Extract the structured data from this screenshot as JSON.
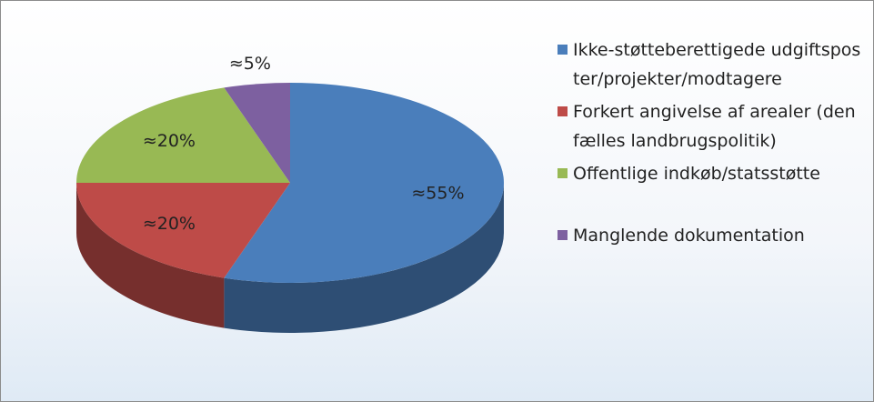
{
  "chart_data": {
    "type": "pie",
    "categories": [
      "Ikke-støtteberettigede udgiftsposter/projekter/modtagere",
      "Forkert angivelse af arealer (den fælles landbrugspolitik)",
      "Offentlige indkøb/statsstøtte",
      "Manglende dokumentation"
    ],
    "values": [
      55,
      20,
      20,
      5
    ],
    "value_labels": [
      "≈55%",
      "≈20%",
      "≈20%",
      "≈5%"
    ],
    "colors": [
      "#4a7ebb",
      "#be4b48",
      "#98b954",
      "#7d60a0"
    ],
    "legend": "right"
  }
}
